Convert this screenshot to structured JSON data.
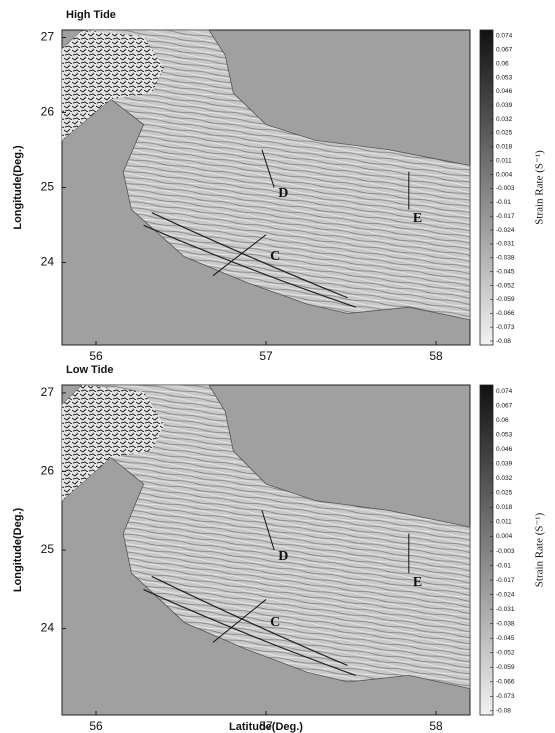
{
  "chart_data": [
    {
      "type": "field",
      "title": "High Tide",
      "ylabel": "Longitude(Deg.)",
      "xlim": [
        55.8,
        58.2
      ],
      "xticks": [
        56,
        57,
        58
      ],
      "ylim": [
        22.9,
        27.1
      ],
      "yticks": [
        24,
        25,
        26,
        27
      ],
      "annotations": [
        "C",
        "D",
        "E"
      ],
      "colorbar": {
        "label": "Strain Rate (S⁻¹)",
        "lim": [
          -0.082,
          0.077
        ],
        "colors": [
          "#f2f2f2",
          "#111111"
        ],
        "ticks": [
          0.074,
          0.067,
          0.06,
          0.053,
          0.046,
          0.039,
          0.032,
          0.025,
          0.018,
          0.011,
          0.004,
          -0.003,
          -0.01,
          -0.017,
          -0.024,
          -0.031,
          -0.038,
          -0.045,
          -0.052,
          -0.059,
          -0.066,
          -0.073,
          -0.08
        ]
      }
    },
    {
      "type": "field",
      "title": "Low Tide",
      "ylabel": "Longitude(Deg.)",
      "xlabel": "Latitude(Deg.)",
      "xlim": [
        55.8,
        58.2
      ],
      "xticks": [
        56,
        57,
        58
      ],
      "ylim": [
        22.9,
        27.1
      ],
      "yticks": [
        24,
        25,
        26,
        27
      ],
      "annotations": [
        "C",
        "D",
        "E"
      ],
      "colorbar": {
        "label": "Strain Rate (S⁻¹)",
        "lim": [
          -0.082,
          0.077
        ],
        "colors": [
          "#f2f2f2",
          "#111111"
        ],
        "ticks": [
          0.074,
          0.067,
          0.06,
          0.053,
          0.046,
          0.039,
          0.032,
          0.025,
          0.018,
          0.011,
          0.004,
          -0.003,
          -0.01,
          -0.017,
          -0.024,
          -0.031,
          -0.038,
          -0.045,
          -0.052,
          -0.059,
          -0.066,
          -0.073,
          -0.08
        ]
      }
    }
  ]
}
